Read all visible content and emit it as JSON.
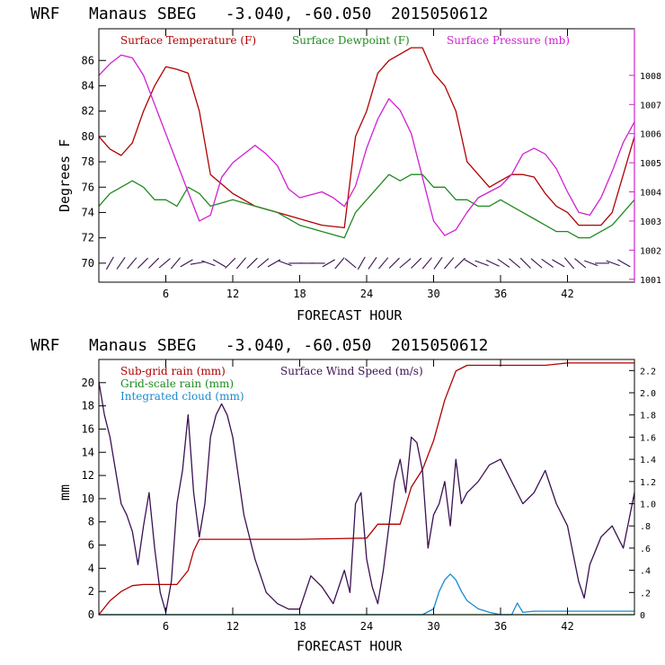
{
  "colors": {
    "temperature": "#b00000",
    "dewpoint": "#1f8a1f",
    "pressure": "#d020d0",
    "wind_barb": "#3a1050",
    "subgrid_rain": "#b00000",
    "wind_speed": "#3a1050",
    "gridscale_rain": "#1f8a1f",
    "cloud": "#1a8ad0"
  },
  "chart_data": [
    {
      "type": "line",
      "title": "WRF   Manaus SBEG   -3.040, -60.050  2015050612",
      "xlabel": "FORECAST HOUR",
      "ylabel": "Degrees F",
      "xlim": [
        0,
        48
      ],
      "ylim": [
        68.5,
        88.5
      ],
      "y2lim": [
        1000.9,
        1009.6
      ],
      "x_ticks": [
        "6",
        "12",
        "18",
        "24",
        "30",
        "36",
        "42"
      ],
      "y_ticks": [
        "70",
        "72",
        "74",
        "76",
        "78",
        "80",
        "82",
        "84",
        "86"
      ],
      "y2_ticks": [
        "1001",
        "1002",
        "1003",
        "1004",
        "1005",
        "1006",
        "1007",
        "1008"
      ],
      "legend": [
        "Surface Temperature (F)",
        "Surface Dewpoint (F)",
        "Surface Pressure (mb)"
      ],
      "series": [
        {
          "name": "Surface Temperature (F)",
          "axis": "left",
          "x": [
            0,
            1,
            2,
            3,
            4,
            5,
            6,
            7,
            8,
            9,
            10,
            12,
            14,
            16,
            18,
            20,
            22,
            23,
            24,
            25,
            26,
            27,
            28,
            29,
            30,
            31,
            32,
            33,
            34,
            35,
            36,
            37,
            38,
            39,
            40,
            41,
            42,
            43,
            44,
            45,
            46,
            47,
            48
          ],
          "values": [
            80,
            79,
            78.5,
            79.5,
            82,
            84,
            85.5,
            85.3,
            85,
            82,
            77,
            75.5,
            74.5,
            74,
            73.5,
            73,
            72.8,
            80,
            82,
            85,
            86,
            86.5,
            87,
            87,
            85,
            84,
            82,
            78,
            77,
            76,
            76.5,
            77,
            77,
            76.8,
            75.5,
            74.5,
            74,
            73,
            73,
            73,
            74,
            77,
            80
          ]
        },
        {
          "name": "Surface Dewpoint (F)",
          "axis": "left",
          "x": [
            0,
            1,
            2,
            3,
            4,
            5,
            6,
            7,
            8,
            9,
            10,
            12,
            14,
            16,
            18,
            20,
            22,
            23,
            24,
            25,
            26,
            27,
            28,
            29,
            30,
            31,
            32,
            33,
            34,
            35,
            36,
            37,
            38,
            39,
            40,
            41,
            42,
            43,
            44,
            45,
            46,
            47,
            48
          ],
          "values": [
            74.5,
            75.5,
            76,
            76.5,
            76,
            75,
            75,
            74.5,
            76,
            75.5,
            74.5,
            75,
            74.5,
            74,
            73,
            72.5,
            72,
            74,
            75,
            76,
            77,
            76.5,
            77,
            77,
            76,
            76,
            75,
            75,
            74.5,
            74.5,
            75,
            74.5,
            74,
            73.5,
            73,
            72.5,
            72.5,
            72,
            72,
            72.5,
            73,
            74,
            75
          ]
        },
        {
          "name": "Surface Pressure (mb)",
          "axis": "right",
          "x": [
            0,
            1,
            2,
            3,
            4,
            5,
            6,
            7,
            8,
            9,
            10,
            11,
            12,
            13,
            14,
            15,
            16,
            17,
            18,
            19,
            20,
            21,
            22,
            23,
            24,
            25,
            26,
            27,
            28,
            29,
            30,
            31,
            32,
            33,
            34,
            35,
            36,
            37,
            38,
            39,
            40,
            41,
            42,
            43,
            44,
            45,
            46,
            47,
            48
          ],
          "values": [
            1008,
            1008.4,
            1008.7,
            1008.6,
            1008,
            1007,
            1006,
            1005,
            1004,
            1003,
            1003.2,
            1004.5,
            1005,
            1005.3,
            1005.6,
            1005.3,
            1004.9,
            1004.1,
            1003.8,
            1003.9,
            1004,
            1003.8,
            1003.5,
            1004.2,
            1005.5,
            1006.5,
            1007.2,
            1006.8,
            1006,
            1004.5,
            1003,
            1002.5,
            1002.7,
            1003.3,
            1003.8,
            1004,
            1004.2,
            1004.6,
            1005.3,
            1005.5,
            1005.3,
            1004.8,
            1004,
            1003.3,
            1003.2,
            1003.8,
            1004.7,
            1005.7,
            1006.4
          ]
        }
      ],
      "wind_barbs_count": 48
    },
    {
      "type": "line",
      "title": "WRF   Manaus SBEG   -3.040, -60.050  2015050612",
      "xlabel": "FORECAST HOUR",
      "ylabel": "mm",
      "xlim": [
        0,
        48
      ],
      "ylim": [
        0,
        22
      ],
      "y2lim": [
        0,
        2.3
      ],
      "x_ticks": [
        "6",
        "12",
        "18",
        "24",
        "30",
        "36",
        "42"
      ],
      "y_ticks": [
        "0",
        "2",
        "4",
        "6",
        "8",
        "10",
        "12",
        "14",
        "16",
        "18",
        "20"
      ],
      "y2_ticks": [
        "0",
        ".2",
        ".4",
        ".6",
        ".8",
        "1.0",
        "1.2",
        "1.4",
        "1.6",
        "1.8",
        "2.0",
        "2.2"
      ],
      "legend": [
        "Sub-grid rain (mm)",
        "Surface Wind Speed (m/s)",
        "Grid-scale rain (mm)",
        "Integrated cloud (mm)"
      ],
      "series": [
        {
          "name": "Sub-grid rain (mm)",
          "axis": "left",
          "x": [
            0,
            1,
            2,
            3,
            4,
            5,
            6,
            7,
            8,
            8.5,
            9,
            12,
            18,
            24,
            25,
            27,
            28,
            29,
            30,
            31,
            32,
            33,
            34,
            35,
            36,
            40,
            42,
            45,
            48
          ],
          "values": [
            0,
            1.2,
            2,
            2.5,
            2.6,
            2.6,
            2.6,
            2.6,
            3.8,
            5.5,
            6.5,
            6.5,
            6.5,
            6.6,
            7.8,
            7.8,
            11,
            12.5,
            15,
            18.5,
            21,
            21.5,
            21.5,
            21.5,
            21.5,
            21.5,
            21.7,
            21.7,
            21.7
          ]
        },
        {
          "name": "Grid-scale rain (mm)",
          "axis": "left",
          "x": [
            0,
            48
          ],
          "values": [
            0,
            0
          ]
        },
        {
          "name": "Integrated cloud (mm)",
          "axis": "left",
          "x": [
            0,
            28,
            29,
            30,
            30.5,
            31,
            31.5,
            32,
            32.5,
            33,
            34,
            35,
            36,
            37,
            37.5,
            38,
            39,
            48
          ],
          "values": [
            0,
            0,
            0,
            0.5,
            2,
            3,
            3.5,
            3,
            2,
            1.2,
            0.5,
            0.2,
            0,
            0,
            1,
            0.2,
            0.3,
            0.3
          ]
        },
        {
          "name": "Surface Wind Speed (m/s)",
          "axis": "right",
          "x": [
            0,
            0.5,
            1,
            1.5,
            2,
            2.5,
            3,
            3.5,
            4,
            4.5,
            5,
            5.5,
            6,
            6.5,
            7,
            7.5,
            8,
            8.5,
            9,
            9.5,
            10,
            10.5,
            11,
            11.5,
            12,
            13,
            14,
            15,
            16,
            17,
            18,
            19,
            20,
            21,
            22,
            22.5,
            23,
            23.5,
            24,
            24.5,
            25,
            25.5,
            26,
            26.5,
            27,
            27.5,
            28,
            28.5,
            29,
            29.5,
            30,
            30.5,
            31,
            31.5,
            32,
            32.5,
            33,
            34,
            35,
            36,
            37,
            38,
            39,
            40,
            41,
            42,
            43,
            43.5,
            44,
            45,
            46,
            47,
            48
          ],
          "values": [
            2.1,
            1.8,
            1.6,
            1.3,
            1.0,
            0.9,
            0.75,
            0.45,
            0.8,
            1.1,
            0.6,
            0.2,
            0.02,
            0.3,
            1.0,
            1.3,
            1.8,
            1.1,
            0.7,
            1.0,
            1.6,
            1.8,
            1.9,
            1.8,
            1.6,
            0.9,
            0.5,
            0.2,
            0.1,
            0.05,
            0.05,
            0.35,
            0.25,
            0.1,
            0.4,
            0.2,
            1.0,
            1.1,
            0.5,
            0.25,
            0.1,
            0.4,
            0.8,
            1.2,
            1.4,
            1.1,
            1.6,
            1.55,
            1.3,
            0.6,
            0.9,
            1.0,
            1.2,
            0.8,
            1.4,
            1.0,
            1.1,
            1.2,
            1.35,
            1.4,
            1.2,
            1.0,
            1.1,
            1.3,
            1.0,
            0.8,
            0.3,
            0.15,
            0.45,
            0.7,
            0.8,
            0.6,
            1.1
          ]
        }
      ]
    }
  ]
}
